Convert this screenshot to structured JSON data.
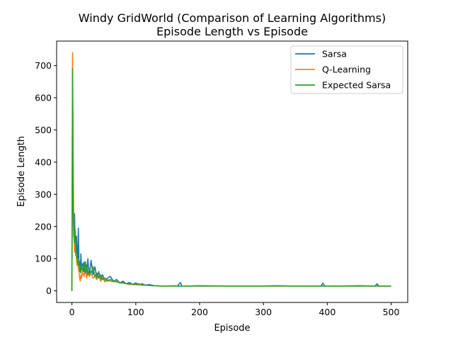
{
  "chart_data": {
    "type": "line",
    "title": "Windy GridWorld (Comparison of Learning Algorithms)",
    "subtitle": "Episode Length vs Episode",
    "xlabel": "Episode",
    "ylabel": "Episode Length",
    "xlim": [
      -24,
      526
    ],
    "ylim": [
      -36,
      776
    ],
    "xticks": [
      0,
      100,
      200,
      300,
      400,
      500
    ],
    "yticks": [
      0,
      100,
      200,
      300,
      400,
      500,
      600,
      700
    ],
    "grid": false,
    "legend_position": "top-right",
    "series": [
      {
        "name": "Sarsa",
        "color": "#1f77b4",
        "points": [
          [
            0,
            0
          ],
          [
            1,
            690
          ],
          [
            2,
            300
          ],
          [
            3,
            180
          ],
          [
            4,
            240
          ],
          [
            5,
            150
          ],
          [
            6,
            110
          ],
          [
            7,
            170
          ],
          [
            8,
            120
          ],
          [
            9,
            100
          ],
          [
            10,
            195
          ],
          [
            11,
            80
          ],
          [
            12,
            90
          ],
          [
            13,
            60
          ],
          [
            14,
            115
          ],
          [
            15,
            70
          ],
          [
            17,
            85
          ],
          [
            19,
            60
          ],
          [
            21,
            90
          ],
          [
            23,
            55
          ],
          [
            25,
            100
          ],
          [
            27,
            45
          ],
          [
            30,
            95
          ],
          [
            33,
            50
          ],
          [
            36,
            75
          ],
          [
            39,
            40
          ],
          [
            42,
            60
          ],
          [
            45,
            35
          ],
          [
            48,
            50
          ],
          [
            52,
            30
          ],
          [
            56,
            40
          ],
          [
            60,
            45
          ],
          [
            65,
            30
          ],
          [
            70,
            35
          ],
          [
            75,
            25
          ],
          [
            80,
            30
          ],
          [
            85,
            22
          ],
          [
            90,
            26
          ],
          [
            95,
            20
          ],
          [
            100,
            25
          ],
          [
            105,
            18
          ],
          [
            110,
            22
          ],
          [
            115,
            17
          ],
          [
            120,
            20
          ],
          [
            130,
            16
          ],
          [
            140,
            15
          ],
          [
            150,
            15
          ],
          [
            160,
            16
          ],
          [
            165,
            15
          ],
          [
            170,
            26
          ],
          [
            172,
            15
          ],
          [
            180,
            15
          ],
          [
            200,
            16
          ],
          [
            250,
            15
          ],
          [
            300,
            15
          ],
          [
            320,
            16
          ],
          [
            350,
            15
          ],
          [
            390,
            15
          ],
          [
            393,
            24
          ],
          [
            396,
            15
          ],
          [
            420,
            15
          ],
          [
            450,
            16
          ],
          [
            475,
            15
          ],
          [
            478,
            22
          ],
          [
            481,
            15
          ],
          [
            500,
            15
          ]
        ]
      },
      {
        "name": "Q-Learning",
        "color": "#ff7f0e",
        "points": [
          [
            0,
            0
          ],
          [
            1,
            740
          ],
          [
            2,
            400
          ],
          [
            3,
            200
          ],
          [
            4,
            120
          ],
          [
            5,
            160
          ],
          [
            6,
            140
          ],
          [
            7,
            100
          ],
          [
            8,
            80
          ],
          [
            9,
            95
          ],
          [
            10,
            70
          ],
          [
            11,
            60
          ],
          [
            12,
            40
          ],
          [
            13,
            30
          ],
          [
            14,
            50
          ],
          [
            15,
            40
          ],
          [
            17,
            60
          ],
          [
            19,
            45
          ],
          [
            21,
            70
          ],
          [
            23,
            40
          ],
          [
            25,
            60
          ],
          [
            27,
            45
          ],
          [
            30,
            55
          ],
          [
            33,
            40
          ],
          [
            36,
            45
          ],
          [
            39,
            35
          ],
          [
            42,
            50
          ],
          [
            45,
            30
          ],
          [
            48,
            40
          ],
          [
            52,
            28
          ],
          [
            56,
            35
          ],
          [
            60,
            30
          ],
          [
            65,
            28
          ],
          [
            70,
            30
          ],
          [
            75,
            25
          ],
          [
            80,
            24
          ],
          [
            85,
            22
          ],
          [
            90,
            20
          ],
          [
            95,
            20
          ],
          [
            100,
            19
          ],
          [
            110,
            18
          ],
          [
            120,
            17
          ],
          [
            130,
            16
          ],
          [
            140,
            15
          ],
          [
            200,
            15
          ],
          [
            300,
            15
          ],
          [
            400,
            15
          ],
          [
            500,
            15
          ]
        ]
      },
      {
        "name": "Expected Sarsa",
        "color": "#2ca02c",
        "points": [
          [
            0,
            0
          ],
          [
            1,
            690
          ],
          [
            2,
            250
          ],
          [
            3,
            170
          ],
          [
            4,
            150
          ],
          [
            5,
            190
          ],
          [
            6,
            140
          ],
          [
            7,
            120
          ],
          [
            8,
            100
          ],
          [
            9,
            90
          ],
          [
            10,
            80
          ],
          [
            11,
            95
          ],
          [
            12,
            60
          ],
          [
            13,
            75
          ],
          [
            14,
            55
          ],
          [
            15,
            80
          ],
          [
            17,
            60
          ],
          [
            19,
            90
          ],
          [
            21,
            55
          ],
          [
            23,
            80
          ],
          [
            25,
            50
          ],
          [
            27,
            70
          ],
          [
            30,
            55
          ],
          [
            33,
            75
          ],
          [
            36,
            45
          ],
          [
            39,
            55
          ],
          [
            42,
            40
          ],
          [
            45,
            50
          ],
          [
            48,
            35
          ],
          [
            52,
            40
          ],
          [
            56,
            30
          ],
          [
            60,
            35
          ],
          [
            65,
            30
          ],
          [
            70,
            28
          ],
          [
            75,
            25
          ],
          [
            80,
            26
          ],
          [
            85,
            22
          ],
          [
            90,
            22
          ],
          [
            95,
            20
          ],
          [
            100,
            20
          ],
          [
            105,
            22
          ],
          [
            110,
            18
          ],
          [
            115,
            19
          ],
          [
            120,
            17
          ],
          [
            130,
            16
          ],
          [
            140,
            15
          ],
          [
            200,
            15
          ],
          [
            300,
            15
          ],
          [
            400,
            15
          ],
          [
            500,
            15
          ]
        ]
      }
    ]
  }
}
